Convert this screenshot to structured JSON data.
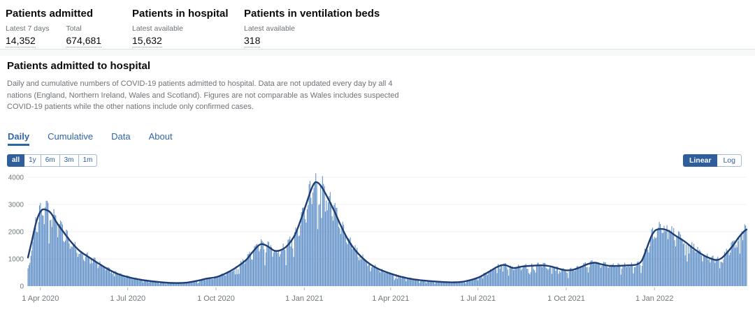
{
  "summary_cards": [
    {
      "title": "Patients admitted",
      "metrics": [
        {
          "label": "Latest 7 days",
          "value": "14,352"
        },
        {
          "label": "Total",
          "value": "674,681"
        }
      ]
    },
    {
      "title": "Patients in hospital",
      "metrics": [
        {
          "label": "Latest available",
          "value": "15,632"
        }
      ]
    },
    {
      "title": "Patients in ventilation beds",
      "metrics": [
        {
          "label": "Latest available",
          "value": "318"
        }
      ]
    }
  ],
  "section": {
    "title": "Patients admitted to hospital",
    "description": "Daily and cumulative numbers of COVID-19 patients admitted to hospital. Data are not updated every day by all 4 nations (England, Northern Ireland, Wales and Scotland). Figures are not comparable as Wales includes suspected COVID-19 patients while the other nations include only confirmed cases.",
    "tabs": [
      {
        "label": "Daily",
        "active": true
      },
      {
        "label": "Cumulative",
        "active": false
      },
      {
        "label": "Data",
        "active": false
      },
      {
        "label": "About",
        "active": false
      }
    ],
    "range_buttons": [
      {
        "label": "all",
        "active": true
      },
      {
        "label": "1y",
        "active": false
      },
      {
        "label": "6m",
        "active": false
      },
      {
        "label": "3m",
        "active": false
      },
      {
        "label": "1m",
        "active": false
      }
    ],
    "scale_toggle": [
      {
        "label": "Linear",
        "active": true
      },
      {
        "label": "Log",
        "active": false
      }
    ]
  },
  "colors": {
    "accent_blue": "#2e65a8",
    "button_blue": "#2e5e9c",
    "bar_blue": "#6090c8",
    "line_navy": "#1e3d73",
    "axis_text": "#6f777b"
  },
  "chart_data": {
    "type": "bar",
    "title": "Patients admitted to hospital — daily admissions with 7-day rolling average",
    "xlabel": "",
    "ylabel": "",
    "ylim": [
      0,
      4400
    ],
    "yticks": [
      0,
      1000,
      2000,
      3000,
      4000
    ],
    "grid": "horizontal",
    "legend": "none",
    "x_range": [
      "2020-03-19",
      "2022-04-07"
    ],
    "xticks": [
      {
        "label": "1 Apr 2020",
        "date": "2020-04-01"
      },
      {
        "label": "1 Jul 2020",
        "date": "2020-07-01"
      },
      {
        "label": "1 Oct 2020",
        "date": "2020-10-01"
      },
      {
        "label": "1 Jan 2021",
        "date": "2021-01-01"
      },
      {
        "label": "1 Apr 2021",
        "date": "2021-04-01"
      },
      {
        "label": "1 Jul 2021",
        "date": "2021-07-01"
      },
      {
        "label": "1 Oct 2021",
        "date": "2021-10-01"
      },
      {
        "label": "1 Jan 2022",
        "date": "2022-01-01"
      }
    ],
    "series": [
      {
        "name": "Daily patients admitted (bars)",
        "type": "bar",
        "color": "#6090c8"
      },
      {
        "name": "7-day rolling average (line)",
        "type": "line",
        "color": "#1e3d73"
      }
    ],
    "keypoints": [
      [
        "2020-03-19",
        1050
      ],
      [
        "2020-03-23",
        1650
      ],
      [
        "2020-03-28",
        2400
      ],
      [
        "2020-04-02",
        2780
      ],
      [
        "2020-04-07",
        2800
      ],
      [
        "2020-04-12",
        2680
      ],
      [
        "2020-04-18",
        2330
      ],
      [
        "2020-04-25",
        1990
      ],
      [
        "2020-05-03",
        1620
      ],
      [
        "2020-05-12",
        1290
      ],
      [
        "2020-05-22",
        1050
      ],
      [
        "2020-06-01",
        820
      ],
      [
        "2020-06-12",
        590
      ],
      [
        "2020-06-22",
        430
      ],
      [
        "2020-07-05",
        300
      ],
      [
        "2020-07-20",
        205
      ],
      [
        "2020-08-05",
        140
      ],
      [
        "2020-08-20",
        112
      ],
      [
        "2020-09-01",
        130
      ],
      [
        "2020-09-12",
        200
      ],
      [
        "2020-09-22",
        280
      ],
      [
        "2020-10-01",
        330
      ],
      [
        "2020-10-10",
        450
      ],
      [
        "2020-10-20",
        640
      ],
      [
        "2020-11-01",
        950
      ],
      [
        "2020-11-08",
        1250
      ],
      [
        "2020-11-16",
        1530
      ],
      [
        "2020-11-23",
        1480
      ],
      [
        "2020-12-01",
        1300
      ],
      [
        "2020-12-08",
        1330
      ],
      [
        "2020-12-15",
        1510
      ],
      [
        "2020-12-22",
        1870
      ],
      [
        "2020-12-28",
        2400
      ],
      [
        "2021-01-04",
        3120
      ],
      [
        "2021-01-09",
        3620
      ],
      [
        "2021-01-13",
        3820
      ],
      [
        "2021-01-18",
        3700
      ],
      [
        "2021-01-24",
        3340
      ],
      [
        "2021-02-01",
        2780
      ],
      [
        "2021-02-08",
        2230
      ],
      [
        "2021-02-15",
        1740
      ],
      [
        "2021-02-22",
        1370
      ],
      [
        "2021-03-01",
        1090
      ],
      [
        "2021-03-10",
        820
      ],
      [
        "2021-03-20",
        620
      ],
      [
        "2021-04-01",
        460
      ],
      [
        "2021-04-12",
        340
      ],
      [
        "2021-04-25",
        250
      ],
      [
        "2021-05-10",
        190
      ],
      [
        "2021-05-25",
        152
      ],
      [
        "2021-06-07",
        140
      ],
      [
        "2021-06-18",
        180
      ],
      [
        "2021-07-01",
        310
      ],
      [
        "2021-07-12",
        520
      ],
      [
        "2021-07-22",
        720
      ],
      [
        "2021-07-29",
        775
      ],
      [
        "2021-08-07",
        665
      ],
      [
        "2021-08-16",
        720
      ],
      [
        "2021-08-25",
        745
      ],
      [
        "2021-09-05",
        765
      ],
      [
        "2021-09-14",
        730
      ],
      [
        "2021-09-23",
        640
      ],
      [
        "2021-10-01",
        580
      ],
      [
        "2021-10-08",
        600
      ],
      [
        "2021-10-16",
        700
      ],
      [
        "2021-10-24",
        815
      ],
      [
        "2021-10-31",
        860
      ],
      [
        "2021-11-07",
        800
      ],
      [
        "2021-11-14",
        750
      ],
      [
        "2021-11-22",
        740
      ],
      [
        "2021-12-01",
        760
      ],
      [
        "2021-12-08",
        770
      ],
      [
        "2021-12-14",
        800
      ],
      [
        "2021-12-19",
        950
      ],
      [
        "2021-12-24",
        1400
      ],
      [
        "2021-12-29",
        1850
      ],
      [
        "2022-01-02",
        2050
      ],
      [
        "2022-01-07",
        2100
      ],
      [
        "2022-01-12",
        2080
      ],
      [
        "2022-01-17",
        2000
      ],
      [
        "2022-01-23",
        1850
      ],
      [
        "2022-02-01",
        1650
      ],
      [
        "2022-02-10",
        1400
      ],
      [
        "2022-02-18",
        1200
      ],
      [
        "2022-02-26",
        1050
      ],
      [
        "2022-03-06",
        960
      ],
      [
        "2022-03-12",
        1030
      ],
      [
        "2022-03-18",
        1250
      ],
      [
        "2022-03-24",
        1500
      ],
      [
        "2022-03-30",
        1800
      ],
      [
        "2022-04-04",
        2000
      ],
      [
        "2022-04-07",
        2080
      ]
    ]
  }
}
